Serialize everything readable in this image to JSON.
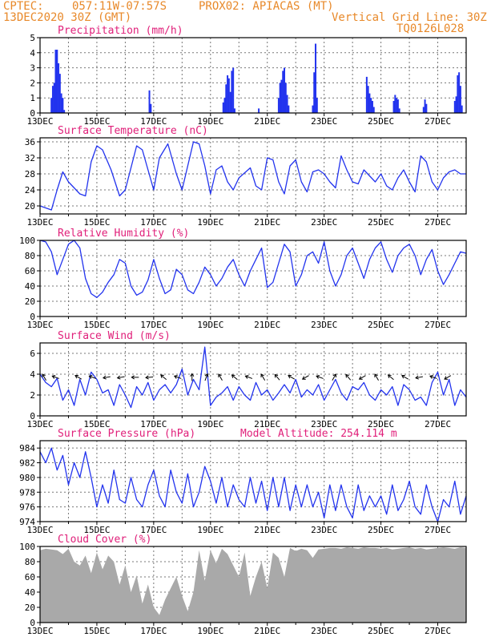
{
  "header": {
    "source": "CPTEC:",
    "coords": "057:11W-07:57S",
    "location": "PROX02: APIACAS (MT)",
    "run": "13DEC2020 30Z (GMT)",
    "grid_note": "Vertical Grid Line: 30Z",
    "code": "TQ0126L028"
  },
  "chart_data": [
    {
      "type": "bar",
      "title": "Precipitation (mm/h)",
      "ylim": [
        0,
        5
      ],
      "yticks": [
        "0",
        "1",
        "2",
        "3",
        "4",
        "5"
      ],
      "xticks": [
        "13DEC",
        "15DEC",
        "17DEC",
        "19DEC",
        "21DEC",
        "23DEC",
        "25DEC",
        "27DEC"
      ],
      "xlim_days": [
        13,
        28
      ],
      "color": "#2233ee",
      "bars": [
        {
          "day": 13.4,
          "value": 1.0
        },
        {
          "day": 13.45,
          "value": 1.8
        },
        {
          "day": 13.5,
          "value": 2.0
        },
        {
          "day": 13.55,
          "value": 4.2
        },
        {
          "day": 13.6,
          "value": 4.2
        },
        {
          "day": 13.65,
          "value": 3.3
        },
        {
          "day": 13.7,
          "value": 2.6
        },
        {
          "day": 13.75,
          "value": 1.3
        },
        {
          "day": 13.8,
          "value": 1.0
        },
        {
          "day": 13.85,
          "value": 0.2
        },
        {
          "day": 16.85,
          "value": 1.5
        },
        {
          "day": 16.9,
          "value": 0.6
        },
        {
          "day": 19.45,
          "value": 0.7
        },
        {
          "day": 19.5,
          "value": 1.0
        },
        {
          "day": 19.55,
          "value": 1.9
        },
        {
          "day": 19.6,
          "value": 2.5
        },
        {
          "day": 19.65,
          "value": 2.3
        },
        {
          "day": 19.7,
          "value": 1.4
        },
        {
          "day": 19.75,
          "value": 2.8
        },
        {
          "day": 19.8,
          "value": 3.0
        },
        {
          "day": 19.85,
          "value": 0.3
        },
        {
          "day": 20.7,
          "value": 0.3
        },
        {
          "day": 21.4,
          "value": 1.0
        },
        {
          "day": 21.45,
          "value": 2.0
        },
        {
          "day": 21.5,
          "value": 2.2
        },
        {
          "day": 21.55,
          "value": 2.8
        },
        {
          "day": 21.6,
          "value": 3.0
        },
        {
          "day": 21.65,
          "value": 2.0
        },
        {
          "day": 21.7,
          "value": 1.2
        },
        {
          "day": 21.75,
          "value": 0.5
        },
        {
          "day": 22.6,
          "value": 0.5
        },
        {
          "day": 22.65,
          "value": 2.7
        },
        {
          "day": 22.7,
          "value": 4.6
        },
        {
          "day": 22.75,
          "value": 1.0
        },
        {
          "day": 24.5,
          "value": 2.4
        },
        {
          "day": 24.55,
          "value": 1.8
        },
        {
          "day": 24.6,
          "value": 1.3
        },
        {
          "day": 24.65,
          "value": 1.0
        },
        {
          "day": 24.7,
          "value": 0.8
        },
        {
          "day": 24.75,
          "value": 0.4
        },
        {
          "day": 25.45,
          "value": 0.8
        },
        {
          "day": 25.5,
          "value": 1.2
        },
        {
          "day": 25.55,
          "value": 1.0
        },
        {
          "day": 25.6,
          "value": 0.9
        },
        {
          "day": 25.65,
          "value": 0.3
        },
        {
          "day": 26.5,
          "value": 0.4
        },
        {
          "day": 26.55,
          "value": 0.9
        },
        {
          "day": 26.6,
          "value": 0.6
        },
        {
          "day": 27.6,
          "value": 0.8
        },
        {
          "day": 27.65,
          "value": 1.1
        },
        {
          "day": 27.7,
          "value": 2.5
        },
        {
          "day": 27.75,
          "value": 2.7
        },
        {
          "day": 27.8,
          "value": 1.8
        },
        {
          "day": 27.85,
          "value": 0.5
        }
      ]
    },
    {
      "type": "line",
      "title": "Surface Temperature (nC)",
      "ylim": [
        18,
        37
      ],
      "yticks": [
        "20",
        "24",
        "28",
        "32",
        "36"
      ],
      "ytick_values": [
        20,
        24,
        28,
        32,
        36
      ],
      "xticks": [
        "13DEC",
        "15DEC",
        "17DEC",
        "19DEC",
        "21DEC",
        "23DEC",
        "25DEC",
        "27DEC"
      ],
      "xlim_days": [
        13,
        28
      ],
      "color": "#2233ee",
      "x": [
        13.0,
        13.4,
        13.6,
        13.8,
        14.0,
        14.4,
        14.6,
        14.8,
        15.0,
        15.2,
        15.5,
        15.8,
        16.0,
        16.4,
        16.6,
        16.8,
        17.0,
        17.2,
        17.5,
        17.8,
        18.0,
        18.4,
        18.6,
        18.8,
        19.0,
        19.2,
        19.4,
        19.6,
        19.8,
        20.0,
        20.4,
        20.6,
        20.8,
        21.0,
        21.2,
        21.4,
        21.6,
        21.8,
        22.0,
        22.2,
        22.4,
        22.6,
        22.8,
        23.0,
        23.2,
        23.4,
        23.6,
        23.8,
        24.0,
        24.2,
        24.4,
        24.6,
        24.8,
        25.0,
        25.2,
        25.4,
        25.6,
        25.8,
        26.0,
        26.2,
        26.4,
        26.6,
        26.8,
        27.0,
        27.2,
        27.4,
        27.6,
        27.8,
        28.0
      ],
      "y": [
        20,
        19,
        24,
        28.5,
        26,
        23,
        22.5,
        31,
        35,
        34,
        29,
        22.5,
        24,
        35,
        34,
        29,
        24,
        32,
        35.5,
        28,
        24,
        36,
        35.5,
        30,
        23,
        29,
        30,
        26,
        24,
        27,
        29.5,
        25,
        24,
        32,
        31.5,
        26,
        23,
        30,
        31.5,
        26,
        23.5,
        28.5,
        29,
        28,
        26,
        24.5,
        32.5,
        29,
        26,
        25.5,
        29,
        27.5,
        26,
        28,
        25,
        24,
        27,
        29,
        26,
        23.5,
        32.5,
        31,
        26,
        24,
        27,
        28.5,
        29,
        28,
        28
      ]
    },
    {
      "type": "line",
      "title": "Relative Humidity (%)",
      "ylim": [
        0,
        100
      ],
      "yticks": [
        "0",
        "20",
        "40",
        "60",
        "80",
        "100"
      ],
      "ytick_values": [
        0,
        20,
        40,
        60,
        80,
        100
      ],
      "xticks": [
        "13DEC",
        "15DEC",
        "17DEC",
        "19DEC",
        "21DEC",
        "23DEC",
        "25DEC",
        "27DEC"
      ],
      "xlim_days": [
        13,
        28
      ],
      "color": "#2233ee",
      "x": [
        13.0,
        13.2,
        13.4,
        13.6,
        13.8,
        14.0,
        14.2,
        14.4,
        14.6,
        14.8,
        15.0,
        15.2,
        15.4,
        15.6,
        15.8,
        16.0,
        16.2,
        16.4,
        16.6,
        16.8,
        17.0,
        17.2,
        17.4,
        17.6,
        17.8,
        18.0,
        18.2,
        18.4,
        18.6,
        18.8,
        19.0,
        19.2,
        19.4,
        19.6,
        19.8,
        20.0,
        20.2,
        20.4,
        20.6,
        20.8,
        21.0,
        21.2,
        21.4,
        21.6,
        21.8,
        22.0,
        22.2,
        22.4,
        22.6,
        22.8,
        23.0,
        23.2,
        23.4,
        23.6,
        23.8,
        24.0,
        24.2,
        24.4,
        24.6,
        24.8,
        25.0,
        25.2,
        25.4,
        25.6,
        25.8,
        26.0,
        26.2,
        26.4,
        26.6,
        26.8,
        27.0,
        27.2,
        27.4,
        27.6,
        27.8,
        28.0
      ],
      "y": [
        100,
        98,
        85,
        55,
        75,
        95,
        100,
        90,
        50,
        30,
        25,
        32,
        45,
        55,
        75,
        70,
        40,
        28,
        32,
        48,
        75,
        50,
        30,
        35,
        62,
        55,
        35,
        30,
        45,
        65,
        55,
        40,
        50,
        65,
        75,
        55,
        40,
        60,
        75,
        90,
        38,
        45,
        70,
        95,
        85,
        40,
        55,
        80,
        85,
        70,
        98,
        60,
        40,
        55,
        80,
        90,
        70,
        50,
        75,
        90,
        98,
        75,
        58,
        80,
        90,
        95,
        80,
        55,
        75,
        88,
        60,
        42,
        55,
        70,
        85,
        83
      ]
    },
    {
      "type": "line",
      "title": "Surface Wind (m/s)",
      "ylim": [
        0,
        7
      ],
      "yticks": [
        "0",
        "2",
        "4",
        "6"
      ],
      "ytick_values": [
        0,
        2,
        4,
        6
      ],
      "xticks": [
        "13DEC",
        "15DEC",
        "17DEC",
        "19DEC",
        "21DEC",
        "23DEC",
        "25DEC",
        "27DEC"
      ],
      "xlim_days": [
        13,
        28
      ],
      "color": "#2233ee",
      "x": [
        13.0,
        13.2,
        13.4,
        13.6,
        13.8,
        14.0,
        14.2,
        14.4,
        14.6,
        14.8,
        15.0,
        15.2,
        15.4,
        15.6,
        15.8,
        16.0,
        16.2,
        16.4,
        16.6,
        16.8,
        17.0,
        17.2,
        17.4,
        17.6,
        17.8,
        18.0,
        18.2,
        18.4,
        18.6,
        18.8,
        19.0,
        19.2,
        19.4,
        19.6,
        19.8,
        20.0,
        20.2,
        20.4,
        20.6,
        20.8,
        21.0,
        21.2,
        21.4,
        21.6,
        21.8,
        22.0,
        22.2,
        22.4,
        22.6,
        22.8,
        23.0,
        23.2,
        23.4,
        23.6,
        23.8,
        24.0,
        24.2,
        24.4,
        24.6,
        24.8,
        25.0,
        25.2,
        25.4,
        25.6,
        25.8,
        26.0,
        26.2,
        26.4,
        26.6,
        26.8,
        27.0,
        27.2,
        27.4,
        27.6,
        27.8,
        28.0
      ],
      "y": [
        4.0,
        3.2,
        2.8,
        3.6,
        1.5,
        2.5,
        1.0,
        3.5,
        2.0,
        4.2,
        3.5,
        2.2,
        2.5,
        1.0,
        3.0,
        2.0,
        0.8,
        2.8,
        2.0,
        3.2,
        1.5,
        2.5,
        3.0,
        2.2,
        3.0,
        4.5,
        2.0,
        3.5,
        2.5,
        6.6,
        1.0,
        1.8,
        2.2,
        2.8,
        1.5,
        2.8,
        2.0,
        1.5,
        3.2,
        2.0,
        2.5,
        1.5,
        2.2,
        3.0,
        2.2,
        3.5,
        1.8,
        2.5,
        2.0,
        3.0,
        1.5,
        2.5,
        3.5,
        2.2,
        1.5,
        2.8,
        2.5,
        3.2,
        2.0,
        1.5,
        2.5,
        2.0,
        2.8,
        1.0,
        3.0,
        2.5,
        1.5,
        1.8,
        1.0,
        3.2,
        4.2,
        2.0,
        3.5,
        1.0,
        2.5,
        1.8
      ]
    },
    {
      "type": "line",
      "title": "Surface Pressure (hPa)",
      "subtitle": "Model Altitude: 254.114 m",
      "ylim": [
        974,
        985
      ],
      "yticks": [
        "974",
        "976",
        "978",
        "980",
        "982",
        "984"
      ],
      "ytick_values": [
        974,
        976,
        978,
        980,
        982,
        984
      ],
      "xticks": [
        "13DEC",
        "15DEC",
        "17DEC",
        "19DEC",
        "21DEC",
        "23DEC",
        "25DEC",
        "27DEC"
      ],
      "xlim_days": [
        13,
        28
      ],
      "color": "#2233ee",
      "x": [
        13.0,
        13.2,
        13.4,
        13.6,
        13.8,
        14.0,
        14.2,
        14.4,
        14.6,
        14.8,
        15.0,
        15.2,
        15.4,
        15.6,
        15.8,
        16.0,
        16.2,
        16.4,
        16.6,
        16.8,
        17.0,
        17.2,
        17.4,
        17.6,
        17.8,
        18.0,
        18.2,
        18.4,
        18.6,
        18.8,
        19.0,
        19.2,
        19.4,
        19.6,
        19.8,
        20.0,
        20.2,
        20.4,
        20.6,
        20.8,
        21.0,
        21.2,
        21.4,
        21.6,
        21.8,
        22.0,
        22.2,
        22.4,
        22.6,
        22.8,
        23.0,
        23.2,
        23.4,
        23.6,
        23.8,
        24.0,
        24.2,
        24.4,
        24.6,
        24.8,
        25.0,
        25.2,
        25.4,
        25.6,
        25.8,
        26.0,
        26.2,
        26.4,
        26.6,
        26.8,
        27.0,
        27.2,
        27.4,
        27.6,
        27.8,
        28.0
      ],
      "y": [
        983.5,
        982.0,
        984.0,
        981.0,
        983.0,
        979.0,
        982.0,
        980.0,
        983.5,
        980.0,
        976.0,
        979.0,
        976.5,
        981.0,
        977.0,
        976.5,
        980.0,
        977.0,
        976.0,
        979.0,
        981.0,
        977.5,
        976.0,
        981.0,
        978.0,
        976.5,
        980.5,
        976.0,
        978.0,
        981.5,
        979.5,
        976.5,
        980.0,
        976.0,
        979.0,
        977.0,
        976.0,
        980.0,
        976.5,
        979.5,
        975.5,
        980.0,
        976.0,
        980.0,
        975.5,
        979.0,
        976.0,
        979.0,
        976.0,
        978.0,
        974.5,
        979.0,
        975.5,
        979.0,
        976.0,
        974.5,
        979.0,
        975.5,
        977.5,
        976.0,
        977.5,
        975.0,
        979.0,
        975.5,
        977.0,
        979.5,
        976.0,
        975.0,
        979.0,
        976.0,
        974.0,
        977.0,
        976.0,
        979.5,
        975.0,
        977.5
      ]
    },
    {
      "type": "area",
      "title": "Cloud Cover (%)",
      "ylim": [
        0,
        100
      ],
      "yticks": [
        "0",
        "20",
        "40",
        "60",
        "80",
        "100"
      ],
      "ytick_values": [
        0,
        20,
        40,
        60,
        80,
        100
      ],
      "xticks": [
        "13DEC",
        "15DEC",
        "17DEC",
        "19DEC",
        "21DEC",
        "23DEC",
        "25DEC",
        "27DEC"
      ],
      "xlim_days": [
        13,
        28
      ],
      "color": "#a9a9a9",
      "x": [
        13.0,
        13.2,
        13.4,
        13.6,
        13.8,
        14.0,
        14.2,
        14.4,
        14.6,
        14.8,
        15.0,
        15.2,
        15.4,
        15.6,
        15.8,
        16.0,
        16.2,
        16.4,
        16.6,
        16.8,
        17.0,
        17.2,
        17.4,
        17.6,
        17.8,
        18.0,
        18.2,
        18.4,
        18.6,
        18.8,
        19.0,
        19.2,
        19.4,
        19.6,
        19.8,
        20.0,
        20.2,
        20.4,
        20.6,
        20.8,
        21.0,
        21.2,
        21.4,
        21.6,
        21.8,
        22.0,
        22.2,
        22.4,
        22.6,
        22.8,
        23.0,
        23.2,
        23.4,
        23.6,
        23.8,
        24.0,
        24.2,
        24.4,
        24.6,
        24.8,
        25.0,
        25.2,
        25.4,
        25.6,
        25.8,
        26.0,
        26.2,
        26.4,
        26.6,
        26.8,
        27.0,
        27.2,
        27.4,
        27.6,
        27.8,
        28.0
      ],
      "y": [
        95,
        97,
        96,
        95,
        90,
        97,
        80,
        75,
        88,
        65,
        92,
        70,
        88,
        80,
        50,
        75,
        40,
        62,
        25,
        50,
        20,
        10,
        30,
        45,
        60,
        35,
        15,
        40,
        95,
        55,
        95,
        78,
        97,
        90,
        75,
        60,
        92,
        35,
        60,
        80,
        45,
        92,
        85,
        60,
        98,
        94,
        97,
        95,
        85,
        96,
        97,
        98,
        98,
        97,
        99,
        98,
        97,
        99,
        98,
        98,
        97,
        98,
        96,
        97,
        98,
        99,
        97,
        98,
        96,
        97,
        98,
        99,
        98,
        97,
        99,
        98
      ]
    }
  ]
}
